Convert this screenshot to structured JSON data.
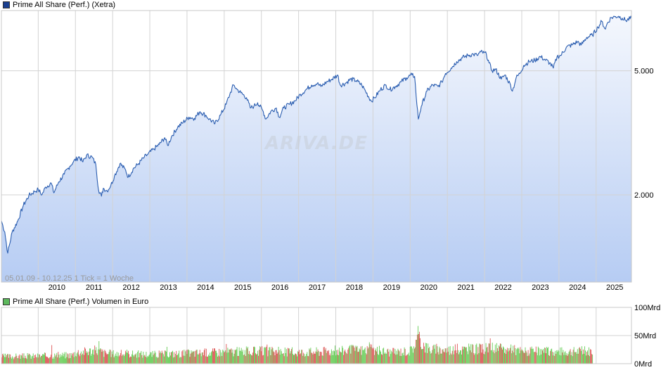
{
  "chart_data": [
    {
      "type": "area",
      "title": "Prime All Share (Perf.) (Xetra)",
      "subtitle": "05.01.09 - 10.12.25    1 Tick = 1 Woche",
      "watermark": "ARIVA.DE",
      "line_color": "#2a5db0",
      "fill_color_top": "#f4f7fd",
      "fill_color_bottom": "#b6ccf3",
      "legend_color": "#1a3f8f",
      "y_scale": "log",
      "ylim": [
        1050,
        7800
      ],
      "y_ticks": [
        {
          "value": 2000,
          "label": "2.000"
        },
        {
          "value": 5000,
          "label": "5.000"
        }
      ],
      "xlim": [
        2009.01,
        2025.95
      ],
      "x_ticks": [
        "2010",
        "2011",
        "2012",
        "2013",
        "2014",
        "2015",
        "2016",
        "2017",
        "2018",
        "2019",
        "2020",
        "2021",
        "2022",
        "2023",
        "2024",
        "2025"
      ],
      "grid": true,
      "series": [
        {
          "name": "Prime All Share (Perf.)",
          "points": [
            [
              2009.01,
              1650
            ],
            [
              2009.1,
              1520
            ],
            [
              2009.18,
              1300
            ],
            [
              2009.3,
              1520
            ],
            [
              2009.45,
              1650
            ],
            [
              2009.6,
              1850
            ],
            [
              2009.75,
              1990
            ],
            [
              2009.9,
              2050
            ],
            [
              2010.0,
              2080
            ],
            [
              2010.1,
              2000
            ],
            [
              2010.2,
              2120
            ],
            [
              2010.35,
              2180
            ],
            [
              2010.42,
              2030
            ],
            [
              2010.55,
              2200
            ],
            [
              2010.7,
              2330
            ],
            [
              2010.85,
              2470
            ],
            [
              2010.95,
              2560
            ],
            [
              2011.1,
              2650
            ],
            [
              2011.2,
              2550
            ],
            [
              2011.3,
              2680
            ],
            [
              2011.45,
              2640
            ],
            [
              2011.55,
              2500
            ],
            [
              2011.62,
              2080
            ],
            [
              2011.7,
              1980
            ],
            [
              2011.75,
              2100
            ],
            [
              2011.85,
              2060
            ],
            [
              2011.95,
              2140
            ],
            [
              2012.05,
              2300
            ],
            [
              2012.2,
              2520
            ],
            [
              2012.35,
              2400
            ],
            [
              2012.42,
              2280
            ],
            [
              2012.55,
              2420
            ],
            [
              2012.7,
              2520
            ],
            [
              2012.85,
              2640
            ],
            [
              2012.95,
              2700
            ],
            [
              2013.1,
              2800
            ],
            [
              2013.25,
              2900
            ],
            [
              2013.4,
              3050
            ],
            [
              2013.48,
              2880
            ],
            [
              2013.6,
              3100
            ],
            [
              2013.75,
              3300
            ],
            [
              2013.9,
              3420
            ],
            [
              2014.05,
              3550
            ],
            [
              2014.2,
              3520
            ],
            [
              2014.35,
              3700
            ],
            [
              2014.5,
              3600
            ],
            [
              2014.6,
              3500
            ],
            [
              2014.75,
              3380
            ],
            [
              2014.9,
              3600
            ],
            [
              2015.05,
              3900
            ],
            [
              2015.15,
              4200
            ],
            [
              2015.25,
              4500
            ],
            [
              2015.35,
              4350
            ],
            [
              2015.45,
              4250
            ],
            [
              2015.6,
              4100
            ],
            [
              2015.7,
              3800
            ],
            [
              2015.8,
              3850
            ],
            [
              2015.9,
              3950
            ],
            [
              2016.05,
              3700
            ],
            [
              2016.12,
              3500
            ],
            [
              2016.25,
              3700
            ],
            [
              2016.4,
              3800
            ],
            [
              2016.48,
              3550
            ],
            [
              2016.6,
              3800
            ],
            [
              2016.75,
              3900
            ],
            [
              2016.9,
              4000
            ],
            [
              2017.05,
              4200
            ],
            [
              2017.2,
              4350
            ],
            [
              2017.35,
              4500
            ],
            [
              2017.5,
              4550
            ],
            [
              2017.6,
              4450
            ],
            [
              2017.75,
              4600
            ],
            [
              2017.9,
              4700
            ],
            [
              2018.05,
              4850
            ],
            [
              2018.12,
              4500
            ],
            [
              2018.25,
              4550
            ],
            [
              2018.4,
              4700
            ],
            [
              2018.55,
              4650
            ],
            [
              2018.7,
              4500
            ],
            [
              2018.8,
              4300
            ],
            [
              2018.95,
              4000
            ],
            [
              2019.05,
              4100
            ],
            [
              2019.2,
              4350
            ],
            [
              2019.35,
              4500
            ],
            [
              2019.45,
              4350
            ],
            [
              2019.6,
              4450
            ],
            [
              2019.75,
              4600
            ],
            [
              2019.9,
              4750
            ],
            [
              2020.05,
              4850
            ],
            [
              2020.12,
              4800
            ],
            [
              2020.18,
              3900
            ],
            [
              2020.22,
              3500
            ],
            [
              2020.3,
              3850
            ],
            [
              2020.45,
              4300
            ],
            [
              2020.6,
              4500
            ],
            [
              2020.75,
              4450
            ],
            [
              2020.85,
              4600
            ],
            [
              2020.95,
              4900
            ],
            [
              2021.1,
              5100
            ],
            [
              2021.25,
              5350
            ],
            [
              2021.4,
              5500
            ],
            [
              2021.55,
              5600
            ],
            [
              2021.7,
              5650
            ],
            [
              2021.8,
              5600
            ],
            [
              2021.9,
              5750
            ],
            [
              2022.05,
              5650
            ],
            [
              2022.12,
              5300
            ],
            [
              2022.2,
              5000
            ],
            [
              2022.3,
              5050
            ],
            [
              2022.45,
              4700
            ],
            [
              2022.55,
              4850
            ],
            [
              2022.7,
              4500
            ],
            [
              2022.75,
              4300
            ],
            [
              2022.85,
              4750
            ],
            [
              2022.95,
              4900
            ],
            [
              2023.05,
              5200
            ],
            [
              2023.2,
              5350
            ],
            [
              2023.35,
              5400
            ],
            [
              2023.5,
              5550
            ],
            [
              2023.6,
              5450
            ],
            [
              2023.75,
              5300
            ],
            [
              2023.85,
              5100
            ],
            [
              2023.95,
              5550
            ],
            [
              2024.05,
              5600
            ],
            [
              2024.2,
              5950
            ],
            [
              2024.35,
              6050
            ],
            [
              2024.5,
              6200
            ],
            [
              2024.6,
              6050
            ],
            [
              2024.75,
              6400
            ],
            [
              2024.9,
              6500
            ],
            [
              2025.05,
              6900
            ],
            [
              2025.15,
              7200
            ],
            [
              2025.25,
              6800
            ],
            [
              2025.3,
              7100
            ],
            [
              2025.4,
              7400
            ],
            [
              2025.5,
              7450
            ],
            [
              2025.6,
              7480
            ],
            [
              2025.7,
              7380
            ],
            [
              2025.8,
              7250
            ],
            [
              2025.95,
              7380
            ]
          ]
        }
      ]
    },
    {
      "type": "bar",
      "title": "Prime All Share (Perf.) Volumen in Euro",
      "legend_color": "#5cb85c",
      "up_color": "#66cc55",
      "down_color": "#dd5555",
      "ylim": [
        0,
        100
      ],
      "y_ticks": [
        {
          "value": 0,
          "label": "0Mrd"
        },
        {
          "value": 50,
          "label": "50Mrd"
        },
        {
          "value": 100,
          "label": "100Mrd"
        }
      ],
      "xlim": [
        2009.01,
        2025.95
      ],
      "x_ticks": [
        "2010",
        "2011",
        "2012",
        "2013",
        "2014",
        "2015",
        "2016",
        "2017",
        "2018",
        "2019",
        "2020",
        "2021",
        "2022",
        "2023",
        "2024",
        "2025"
      ],
      "grid": true,
      "bars_end": 2024.9,
      "series": [
        {
          "name": "Volumen in Euro",
          "unit": "Mrd",
          "level_profile": [
            [
              2009.0,
              14
            ],
            [
              2010.0,
              15
            ],
            [
              2010.9,
              17
            ],
            [
              2011.0,
              22
            ],
            [
              2011.6,
              26
            ],
            [
              2011.8,
              20
            ],
            [
              2012.5,
              19
            ],
            [
              2013.0,
              18
            ],
            [
              2014.0,
              20
            ],
            [
              2015.0,
              23
            ],
            [
              2016.0,
              24
            ],
            [
              2017.0,
              22
            ],
            [
              2018.0,
              25
            ],
            [
              2018.9,
              27
            ],
            [
              2019.5,
              22
            ],
            [
              2020.0,
              25
            ],
            [
              2020.2,
              48
            ],
            [
              2020.5,
              28
            ],
            [
              2021.0,
              27
            ],
            [
              2022.0,
              28
            ],
            [
              2022.2,
              30
            ],
            [
              2023.0,
              24
            ],
            [
              2024.0,
              23
            ],
            [
              2024.9,
              24
            ]
          ],
          "spikes": [
            [
              2010.35,
              33
            ],
            [
              2011.62,
              40
            ],
            [
              2013.45,
              30
            ],
            [
              2015.05,
              35
            ],
            [
              2016.15,
              34
            ],
            [
              2018.9,
              38
            ],
            [
              2020.2,
              67
            ],
            [
              2022.15,
              45
            ],
            [
              2024.6,
              31
            ]
          ]
        }
      ]
    }
  ]
}
